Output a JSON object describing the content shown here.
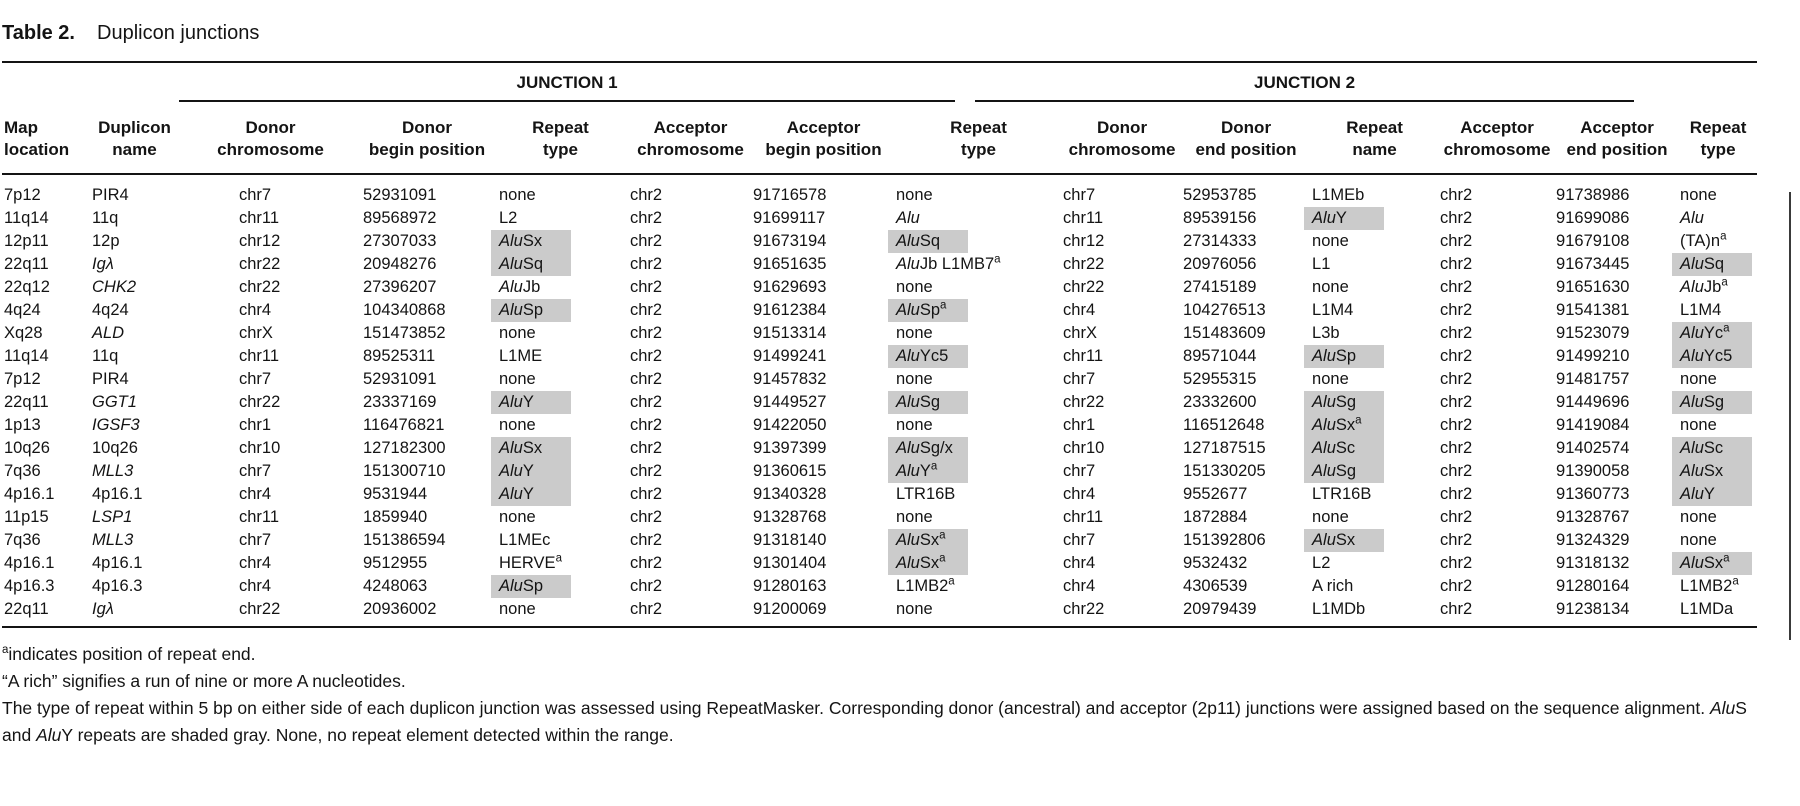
{
  "title": {
    "label": "Table 2.",
    "text": "Duplicon junctions"
  },
  "table": {
    "group_headers": [
      {
        "label": "JUNCTION 1"
      },
      {
        "label": "JUNCTION 2"
      }
    ],
    "columns": [
      {
        "line1": "Map",
        "line2": "location"
      },
      {
        "line1": "Duplicon",
        "line2": "name"
      },
      {
        "line1": "Donor",
        "line2": "chromosome"
      },
      {
        "line1": "Donor",
        "line2": "begin position"
      },
      {
        "line1": "Repeat",
        "line2": "type"
      },
      {
        "line1": "Acceptor",
        "line2": "chromosome"
      },
      {
        "line1": "Acceptor",
        "line2": "begin position"
      },
      {
        "line1": "Repeat",
        "line2": "type"
      },
      {
        "line1": "Donor",
        "line2": "chromosome"
      },
      {
        "line1": "Donor",
        "line2": "end position"
      },
      {
        "line1": "Repeat",
        "line2": "name"
      },
      {
        "line1": "Acceptor",
        "line2": "chromosome"
      },
      {
        "line1": "Acceptor",
        "line2": "end position"
      },
      {
        "line1": "Repeat",
        "line2": "type"
      }
    ],
    "shade_color": "#cbcbcb",
    "rows": [
      [
        "7p12",
        "PIR4",
        "chr7",
        "52931091",
        "none",
        "chr2",
        "91716578",
        "none",
        "chr7",
        "52953785",
        "L1MEb",
        "chr2",
        "91738986",
        "none"
      ],
      [
        "11q14",
        "11q",
        "chr11",
        "89568972",
        "L2",
        "chr2",
        "91699117",
        "*Alu*",
        "chr11",
        "89539156",
        "##*Alu*Y",
        "chr2",
        "91699086",
        "*Alu*"
      ],
      [
        "12p11",
        "12p",
        "chr12",
        "27307033",
        "##*Alu*Sx",
        "chr2",
        "91673194",
        "##*Alu*Sq",
        "chr12",
        "27314333",
        "none",
        "chr2",
        "91679108",
        "(TA)n^a"
      ],
      [
        "22q11",
        "*Igλ*",
        "chr22",
        "20948276",
        "##*Alu*Sq",
        "chr2",
        "91651635",
        "*Alu*Jb L1MB7^a",
        "chr22",
        "20976056",
        "L1",
        "chr2",
        "91673445",
        "##*Alu*Sq"
      ],
      [
        "22q12",
        "*CHK2*",
        "chr22",
        "27396207",
        "*Alu*Jb",
        "chr2",
        "91629693",
        "none",
        "chr22",
        "27415189",
        "none",
        "chr2",
        "91651630",
        "*Alu*Jb^a"
      ],
      [
        "4q24",
        "4q24",
        "chr4",
        "104340868",
        "##*Alu*Sp",
        "chr2",
        "91612384",
        "##*Alu*Sp^a",
        "chr4",
        "104276513",
        "L1M4",
        "chr2",
        "91541381",
        "L1M4"
      ],
      [
        "Xq28",
        "*ALD*",
        "chrX",
        "151473852",
        "none",
        "chr2",
        "91513314",
        "none",
        "chrX",
        "151483609",
        "L3b",
        "chr2",
        "91523079",
        "##*Alu*Yc^a"
      ],
      [
        "11q14",
        "11q",
        "chr11",
        "89525311",
        "L1ME",
        "chr2",
        "91499241",
        "##*Alu*Yc5",
        "chr11",
        "89571044",
        "##*Alu*Sp",
        "chr2",
        "91499210",
        "##*Alu*Yc5"
      ],
      [
        "7p12",
        "PIR4",
        "chr7",
        "52931091",
        "none",
        "chr2",
        "91457832",
        "none",
        "chr7",
        "52955315",
        "none",
        "chr2",
        "91481757",
        "none"
      ],
      [
        "22q11",
        "*GGT1*",
        "chr22",
        "23337169",
        "##*Alu*Y",
        "chr2",
        "91449527",
        "##*Alu*Sg",
        "chr22",
        "23332600",
        "##*Alu*Sg",
        "chr2",
        "91449696",
        "##*Alu*Sg"
      ],
      [
        "1p13",
        "*IGSF3*",
        "chr1",
        "116476821",
        "none",
        "chr2",
        "91422050",
        "none",
        "chr1",
        "116512648",
        "##*Alu*Sx^a",
        "chr2",
        "91419084",
        "none"
      ],
      [
        "10q26",
        "10q26",
        "chr10",
        "127182300",
        "##*Alu*Sx",
        "chr2",
        "91397399",
        "##*Alu*Sg/x",
        "chr10",
        "127187515",
        "##*Alu*Sc",
        "chr2",
        "91402574",
        "##*Alu*Sc"
      ],
      [
        "7q36",
        "*MLL3*",
        "chr7",
        "151300710",
        "##*Alu*Y",
        "chr2",
        "91360615",
        "##*Alu*Y^a",
        "chr7",
        "151330205",
        "##*Alu*Sg",
        "chr2",
        "91390058",
        "##*Alu*Sx"
      ],
      [
        "4p16.1",
        "4p16.1",
        "chr4",
        "9531944",
        "##*Alu*Y",
        "chr2",
        "91340328",
        "LTR16B",
        "chr4",
        "9552677",
        "LTR16B",
        "chr2",
        "91360773",
        "##*Alu*Y"
      ],
      [
        "11p15",
        "*LSP1*",
        "chr11",
        "1859940",
        "none",
        "chr2",
        "91328768",
        "none",
        "chr11",
        "1872884",
        "none",
        "chr2",
        "91328767",
        "none"
      ],
      [
        "7q36",
        "*MLL3*",
        "chr7",
        "151386594",
        "L1MEc",
        "chr2",
        "91318140",
        "##*Alu*Sx^a",
        "chr7",
        "151392806",
        "##*Alu*Sx",
        "chr2",
        "91324329",
        "none"
      ],
      [
        "4p16.1",
        "4p16.1",
        "chr4",
        "9512955",
        "HERVE^a",
        "chr2",
        "91301404",
        "##*Alu*Sx^a",
        "chr4",
        "9532432",
        "L2",
        "chr2",
        "91318132",
        "##*Alu*Sx^a"
      ],
      [
        "4p16.3",
        "4p16.3",
        "chr4",
        "4248063",
        "##*Alu*Sp",
        "chr2",
        "91280163",
        "L1MB2^a",
        "chr4",
        "4306539",
        "A rich",
        "chr2",
        "91280164",
        "L1MB2^a"
      ],
      [
        "22q11",
        "*Igλ*",
        "chr22",
        "20936002",
        "none",
        "chr2",
        "91200069",
        "none",
        "chr22",
        "20979439",
        "L1MDb",
        "chr2",
        "91238134",
        "L1MDa"
      ]
    ]
  },
  "footnotes": [
    "^aindicates position of repeat end.",
    "“A rich” signifies a run of nine or more A nucleotides.",
    "The type of repeat within 5 bp on either side of each duplicon junction was assessed using RepeatMasker. Corresponding donor (ancestral) and acceptor (2p11) junctions were assigned based on the sequence alignment. *Alu*S and *Alu*Y repeats are shaded gray. None, no repeat element detected within the range."
  ]
}
